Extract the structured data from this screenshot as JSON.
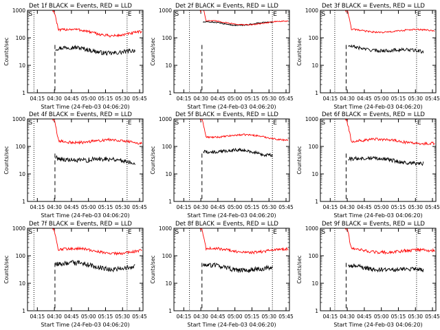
{
  "series_names": [
    "Events",
    "LLD"
  ],
  "colors": {
    "events": "#000000",
    "lld": "#ff0000",
    "axis": "#000000",
    "background": "#ffffff"
  },
  "chart_data": [
    {
      "type": "line",
      "title": "Det 1f BLACK = Events, RED = LLD",
      "xlabel": "Start Time (24-Feb-03 04:06:20)",
      "ylabel": "Counts/sec",
      "xticks": [
        "04:15",
        "04:30",
        "04:45",
        "05:00",
        "05:15",
        "05:30",
        "05:45"
      ],
      "yticks": [
        "1",
        "10",
        "100",
        "1000"
      ],
      "yscale": "log",
      "ylim": [
        1,
        1000
      ],
      "xlim": [
        "04:06:20",
        "05:48"
      ],
      "markers": {
        "start": "S",
        "end": "E"
      },
      "dotted_lines": [
        "04:12",
        "05:34"
      ],
      "dashed_line": "04:30:30",
      "series": [
        {
          "name": "Events",
          "x_start": "04:31",
          "x_end": "05:41",
          "level": 40,
          "end_value": 30,
          "noise": 0.08,
          "wave": 0.08
        },
        {
          "name": "LLD",
          "x_start": "04:29",
          "x_end": "05:47",
          "level": 170,
          "end_value": 140,
          "noise": 0.05,
          "wave": 0.1
        }
      ]
    },
    {
      "type": "line",
      "title": "Det 2f BLACK = Events, RED = LLD",
      "xlabel": "Start Time (24-Feb-03 04:06:20)",
      "ylabel": "Counts/sec",
      "xticks": [
        "04:15",
        "04:30",
        "04:45",
        "05:00",
        "05:15",
        "05:30",
        "05:45"
      ],
      "yticks": [
        "1",
        "10",
        "100",
        "1000"
      ],
      "yscale": "log",
      "ylim": [
        1,
        1000
      ],
      "xlim": [
        "04:06:20",
        "05:48"
      ],
      "markers": {
        "start": "S",
        "end": "E"
      },
      "dotted_lines": [
        "04:20",
        "05:33"
      ],
      "dashed_line": "04:31",
      "series": [
        {
          "name": "Events",
          "x_start": "04:32",
          "x_end": "05:33",
          "level": 330,
          "end_value": 320,
          "noise": 0.02,
          "wave": 0.06
        },
        {
          "name": "LLD",
          "x_start": "04:30",
          "x_end": "05:47",
          "level": 360,
          "end_value": 340,
          "noise": 0.02,
          "wave": 0.07
        }
      ]
    },
    {
      "type": "line",
      "title": "Det 3f BLACK = Events, RED = LLD",
      "xlabel": "Start Time (24-Feb-03 04:06:20)",
      "ylabel": "Counts/sec",
      "xticks": [
        "04:15",
        "04:30",
        "04:45",
        "05:00",
        "05:15",
        "05:30",
        "05:45"
      ],
      "yticks": [
        "1",
        "10",
        "100",
        "1000"
      ],
      "yscale": "log",
      "ylim": [
        1,
        1000
      ],
      "xlim": [
        "04:06:20",
        "05:48"
      ],
      "markers": {
        "start": "S",
        "end": "E"
      },
      "dotted_lines": [
        "04:19",
        "05:31"
      ],
      "dashed_line": "04:29",
      "series": [
        {
          "name": "Events",
          "x_start": "04:31",
          "x_end": "05:37",
          "level": 45,
          "end_value": 30,
          "noise": 0.06,
          "wave": 0.05
        },
        {
          "name": "LLD",
          "x_start": "04:29",
          "x_end": "05:47",
          "level": 190,
          "end_value": 170,
          "noise": 0.03,
          "wave": 0.06
        }
      ]
    },
    {
      "type": "line",
      "title": "Det 4f BLACK = Events, RED = LLD",
      "xlabel": "Start Time (24-Feb-03 04:06:20)",
      "ylabel": "Counts/sec",
      "xticks": [
        "04:15",
        "04:30",
        "04:45",
        "05:00",
        "05:15",
        "05:30",
        "05:45"
      ],
      "yticks": [
        "1",
        "10",
        "100",
        "1000"
      ],
      "yscale": "log",
      "ylim": [
        1,
        1000
      ],
      "xlim": [
        "04:06:20",
        "05:48"
      ],
      "markers": {
        "start": "S",
        "end": "E"
      },
      "dotted_lines": [
        "04:12",
        "05:34"
      ],
      "dashed_line": "04:30:30",
      "series": [
        {
          "name": "Events",
          "x_start": "04:31",
          "x_end": "05:41",
          "level": 38,
          "end_value": 28,
          "noise": 0.09,
          "wave": 0.06
        },
        {
          "name": "LLD",
          "x_start": "04:29",
          "x_end": "05:47",
          "level": 170,
          "end_value": 140,
          "noise": 0.05,
          "wave": 0.07
        }
      ]
    },
    {
      "type": "line",
      "title": "Det 5f BLACK = Events, RED = LLD",
      "xlabel": "Start Time (24-Feb-03 04:06:20)",
      "ylabel": "Counts/sec",
      "xticks": [
        "04:15",
        "04:30",
        "04:45",
        "05:00",
        "05:15",
        "05:30",
        "05:45"
      ],
      "yticks": [
        "1",
        "10",
        "100",
        "1000"
      ],
      "yscale": "log",
      "ylim": [
        1,
        1000
      ],
      "xlim": [
        "04:06:20",
        "05:48"
      ],
      "markers": {
        "start": "S",
        "end": "E"
      },
      "dotted_lines": [
        "04:20",
        "05:33"
      ],
      "dashed_line": "04:31",
      "series": [
        {
          "name": "Events",
          "x_start": "04:32",
          "x_end": "05:33",
          "level": 75,
          "end_value": 55,
          "noise": 0.06,
          "wave": 0.07
        },
        {
          "name": "LLD",
          "x_start": "04:30",
          "x_end": "05:47",
          "level": 260,
          "end_value": 200,
          "noise": 0.03,
          "wave": 0.07
        }
      ]
    },
    {
      "type": "line",
      "title": "Det 6f BLACK = Events, RED = LLD",
      "xlabel": "Start Time (24-Feb-03 04:06:20)",
      "ylabel": "Counts/sec",
      "xticks": [
        "04:15",
        "04:30",
        "04:45",
        "05:00",
        "05:15",
        "05:30",
        "05:45"
      ],
      "yticks": [
        "1",
        "10",
        "100",
        "1000"
      ],
      "yscale": "log",
      "ylim": [
        1,
        1000
      ],
      "xlim": [
        "04:06:20",
        "05:48"
      ],
      "markers": {
        "start": "S",
        "end": "E"
      },
      "dotted_lines": [
        "04:19",
        "05:31"
      ],
      "dashed_line": "04:29",
      "series": [
        {
          "name": "Events",
          "x_start": "04:31",
          "x_end": "05:37",
          "level": 40,
          "end_value": 25,
          "noise": 0.07,
          "wave": 0.05
        },
        {
          "name": "LLD",
          "x_start": "04:29",
          "x_end": "05:47",
          "level": 170,
          "end_value": 140,
          "noise": 0.05,
          "wave": 0.06
        }
      ]
    },
    {
      "type": "line",
      "title": "Det 7f BLACK = Events, RED = LLD",
      "xlabel": "Start Time (24-Feb-03 04:06:20)",
      "ylabel": "Counts/sec",
      "xticks": [
        "04:15",
        "04:30",
        "04:45",
        "05:00",
        "05:15",
        "05:30",
        "05:45"
      ],
      "yticks": [
        "1",
        "10",
        "100",
        "1000"
      ],
      "yscale": "log",
      "ylim": [
        1,
        1000
      ],
      "xlim": [
        "04:06:20",
        "05:48"
      ],
      "markers": {
        "start": "S",
        "end": "E"
      },
      "dotted_lines": [
        "04:12",
        "05:34"
      ],
      "dashed_line": "04:30:30",
      "series": [
        {
          "name": "Events",
          "x_start": "04:31",
          "x_end": "05:41",
          "level": 50,
          "end_value": 35,
          "noise": 0.09,
          "wave": 0.08
        },
        {
          "name": "LLD",
          "x_start": "04:29",
          "x_end": "05:47",
          "level": 160,
          "end_value": 140,
          "noise": 0.05,
          "wave": 0.08
        }
      ]
    },
    {
      "type": "line",
      "title": "Det 8f BLACK = Events, RED = LLD",
      "xlabel": "Start Time (24-Feb-03 04:06:20)",
      "ylabel": "Counts/sec",
      "xticks": [
        "04:15",
        "04:30",
        "04:45",
        "05:00",
        "05:15",
        "05:30",
        "05:45"
      ],
      "yticks": [
        "1",
        "10",
        "100",
        "1000"
      ],
      "yscale": "log",
      "ylim": [
        1,
        1000
      ],
      "xlim": [
        "04:06:20",
        "05:48"
      ],
      "markers": {
        "start": "S",
        "end": "E"
      },
      "dotted_lines": [
        "04:20",
        "05:33"
      ],
      "dashed_line": "04:31",
      "series": [
        {
          "name": "Events",
          "x_start": "04:32",
          "x_end": "05:33",
          "level": 40,
          "end_value": 30,
          "noise": 0.09,
          "wave": 0.07
        },
        {
          "name": "LLD",
          "x_start": "04:30",
          "x_end": "05:47",
          "level": 160,
          "end_value": 150,
          "noise": 0.05,
          "wave": 0.07
        }
      ]
    },
    {
      "type": "line",
      "title": "Det 9f BLACK = Events, RED = LLD",
      "xlabel": "Start Time (24-Feb-03 04:06:20)",
      "ylabel": "Counts/sec",
      "xticks": [
        "04:15",
        "04:30",
        "04:45",
        "05:00",
        "05:15",
        "05:30",
        "05:45"
      ],
      "yticks": [
        "1",
        "10",
        "100",
        "1000"
      ],
      "yscale": "log",
      "ylim": [
        1,
        1000
      ],
      "xlim": [
        "04:06:20",
        "05:48"
      ],
      "markers": {
        "start": "S",
        "end": "E"
      },
      "dotted_lines": [
        "04:19",
        "05:31"
      ],
      "dashed_line": "04:29",
      "series": [
        {
          "name": "Events",
          "x_start": "04:31",
          "x_end": "05:37",
          "level": 40,
          "end_value": 28,
          "noise": 0.08,
          "wave": 0.05
        },
        {
          "name": "LLD",
          "x_start": "04:29",
          "x_end": "05:47",
          "level": 160,
          "end_value": 140,
          "noise": 0.06,
          "wave": 0.06
        }
      ]
    }
  ]
}
